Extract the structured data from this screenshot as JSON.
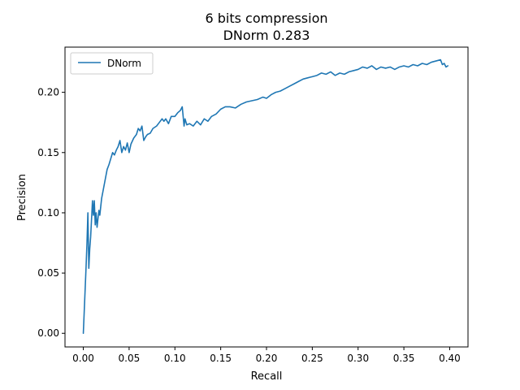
{
  "chart_data": {
    "type": "line",
    "title": "6 bits compression",
    "subtitle": "DNorm 0.283",
    "xlabel": "Recall",
    "ylabel": "Precision",
    "xlim": [
      -0.02,
      0.42
    ],
    "ylim": [
      -0.0113,
      0.2375
    ],
    "xticks": [
      0.0,
      0.05,
      0.1,
      0.15,
      0.2,
      0.25,
      0.3,
      0.35,
      0.4
    ],
    "xtick_labels": [
      "0.00",
      "0.05",
      "0.10",
      "0.15",
      "0.20",
      "0.25",
      "0.30",
      "0.35",
      "0.40"
    ],
    "yticks": [
      0.0,
      0.05,
      0.1,
      0.15,
      0.2
    ],
    "ytick_labels": [
      "0.00",
      "0.05",
      "0.10",
      "0.15",
      "0.20"
    ],
    "grid": false,
    "legend_position": "upper-left",
    "colors": {
      "series": "#1f77b4",
      "axes": "#000000",
      "background": "#ffffff"
    },
    "series": [
      {
        "name": "DNorm",
        "x": [
          0.0,
          0.003,
          0.004,
          0.005,
          0.006,
          0.007,
          0.008,
          0.009,
          0.01,
          0.011,
          0.012,
          0.013,
          0.014,
          0.015,
          0.016,
          0.017,
          0.018,
          0.019,
          0.02,
          0.022,
          0.024,
          0.026,
          0.028,
          0.03,
          0.032,
          0.034,
          0.036,
          0.038,
          0.04,
          0.042,
          0.044,
          0.046,
          0.048,
          0.05,
          0.052,
          0.055,
          0.058,
          0.06,
          0.062,
          0.064,
          0.066,
          0.068,
          0.07,
          0.073,
          0.076,
          0.08,
          0.083,
          0.086,
          0.088,
          0.09,
          0.093,
          0.096,
          0.1,
          0.103,
          0.106,
          0.108,
          0.11,
          0.111,
          0.113,
          0.116,
          0.12,
          0.124,
          0.128,
          0.132,
          0.136,
          0.14,
          0.145,
          0.15,
          0.155,
          0.16,
          0.166,
          0.172,
          0.178,
          0.184,
          0.19,
          0.196,
          0.2,
          0.205,
          0.21,
          0.215,
          0.22,
          0.225,
          0.23,
          0.235,
          0.24,
          0.245,
          0.25,
          0.255,
          0.26,
          0.265,
          0.27,
          0.275,
          0.28,
          0.285,
          0.29,
          0.295,
          0.3,
          0.305,
          0.31,
          0.315,
          0.32,
          0.325,
          0.33,
          0.335,
          0.34,
          0.345,
          0.35,
          0.355,
          0.36,
          0.365,
          0.37,
          0.375,
          0.38,
          0.385,
          0.39,
          0.392,
          0.394,
          0.396,
          0.398
        ],
        "y": [
          0.0,
          0.055,
          0.075,
          0.1,
          0.054,
          0.07,
          0.08,
          0.095,
          0.11,
          0.098,
          0.11,
          0.09,
          0.1,
          0.088,
          0.095,
          0.102,
          0.098,
          0.105,
          0.112,
          0.12,
          0.128,
          0.136,
          0.14,
          0.145,
          0.15,
          0.148,
          0.152,
          0.155,
          0.16,
          0.15,
          0.155,
          0.152,
          0.158,
          0.15,
          0.157,
          0.162,
          0.165,
          0.17,
          0.168,
          0.172,
          0.16,
          0.163,
          0.165,
          0.166,
          0.17,
          0.172,
          0.175,
          0.178,
          0.176,
          0.178,
          0.174,
          0.18,
          0.18,
          0.183,
          0.185,
          0.188,
          0.172,
          0.178,
          0.173,
          0.174,
          0.172,
          0.176,
          0.173,
          0.178,
          0.176,
          0.18,
          0.182,
          0.186,
          0.188,
          0.188,
          0.187,
          0.19,
          0.192,
          0.193,
          0.194,
          0.196,
          0.195,
          0.198,
          0.2,
          0.201,
          0.203,
          0.205,
          0.207,
          0.209,
          0.211,
          0.212,
          0.213,
          0.214,
          0.216,
          0.215,
          0.217,
          0.214,
          0.216,
          0.215,
          0.217,
          0.218,
          0.219,
          0.221,
          0.22,
          0.222,
          0.219,
          0.221,
          0.22,
          0.221,
          0.219,
          0.221,
          0.222,
          0.221,
          0.223,
          0.222,
          0.224,
          0.223,
          0.225,
          0.226,
          0.227,
          0.223,
          0.224,
          0.221,
          0.222
        ]
      }
    ]
  }
}
